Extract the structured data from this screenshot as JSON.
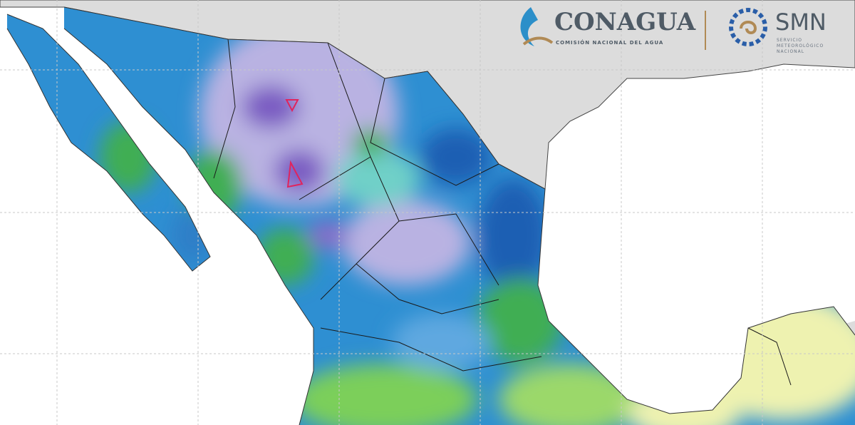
{
  "header": {
    "conagua": "CONAGUA",
    "conagua_subtitle": "COMISIÓN NACIONAL DEL AGUA",
    "smn": "SMN",
    "smn_subtitle": [
      "SERVICIO",
      "METEOROLÓGICO",
      "NACIONAL"
    ]
  }
}
